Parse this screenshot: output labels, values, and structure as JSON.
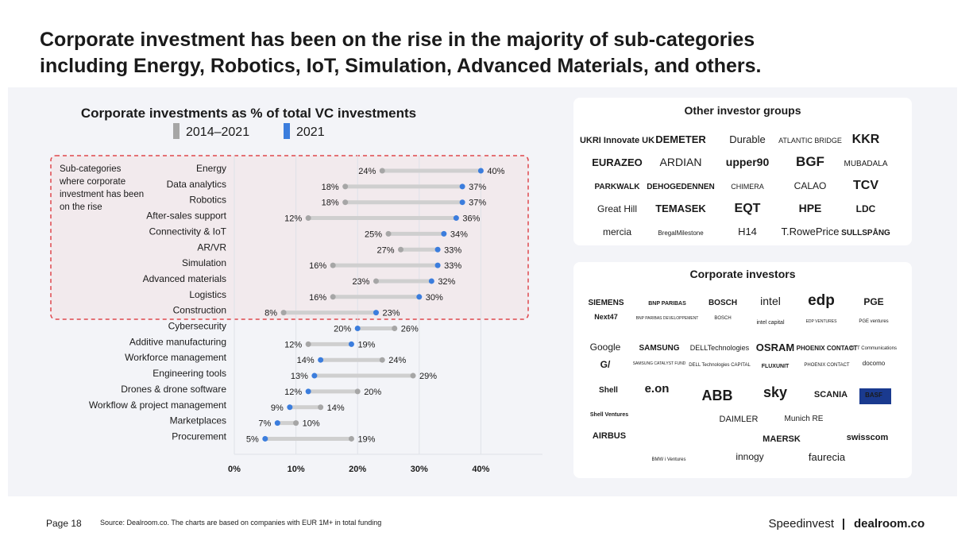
{
  "title_lines": [
    "Corporate investment has been on the rise in the majority of sub-categories",
    "including Energy, Robotics, IoT, Simulation, Advanced Materials, and others."
  ],
  "chart_data": {
    "type": "dumbbell",
    "title": "Corporate investments as % of total VC investments",
    "categories": [
      "Energy",
      "Data analytics",
      "Robotics",
      "After-sales support",
      "Connectivity & IoT",
      "AR/VR",
      "Simulation",
      "Advanced materials",
      "Logistics",
      "Construction",
      "Cybersecurity",
      "Additive manufacturing",
      "Workforce management",
      "Engineering tools",
      "Drones & drone software",
      "Workflow & project management",
      "Marketplaces",
      "Procurement"
    ],
    "series": [
      {
        "name": "2014–2021",
        "color": "#a6a6a6",
        "values": [
          24,
          18,
          18,
          12,
          25,
          27,
          16,
          23,
          16,
          8,
          26,
          12,
          24,
          29,
          20,
          14,
          10,
          19
        ],
        "value_labels": [
          "24%",
          "18%",
          "18%",
          "12%",
          "25%",
          "27%",
          "16%",
          "23%",
          "16%",
          "8%",
          "26%",
          "12%",
          "24%",
          "29%",
          "20%",
          "14%",
          "10%",
          "19%"
        ]
      },
      {
        "name": "2021",
        "color": "#3b7ddd",
        "values": [
          40,
          37,
          37,
          36,
          34,
          33,
          33,
          32,
          30,
          23,
          20,
          19,
          14,
          13,
          12,
          9,
          7,
          5
        ],
        "value_labels": [
          "40%",
          "37%",
          "37%",
          "36%",
          "34%",
          "33%",
          "33%",
          "32%",
          "30%",
          "23%",
          "20%",
          "19%",
          "14%",
          "13%",
          "12%",
          "9%",
          "7%",
          "5%"
        ]
      }
    ],
    "xlim": [
      0,
      50
    ],
    "xticks": [
      {
        "value": 0,
        "label": "0%"
      },
      {
        "value": 10,
        "label": "10%"
      },
      {
        "value": 20,
        "label": "20%"
      },
      {
        "value": 30,
        "label": "30%"
      },
      {
        "value": 40,
        "label": "40%"
      }
    ],
    "grid": true,
    "annotation_lines": [
      "Sub-categories",
      "where corporate",
      "investment has been",
      "on the rise"
    ]
  },
  "other_investors": {
    "title": "Other investor groups",
    "logos": [
      "UKRI Innovate UK",
      "DEMETER",
      "Durable",
      "ATLANTIC BRIDGE",
      "KKR",
      "EURAZEO",
      "ARDIAN",
      "upper90",
      "BGF",
      "MUBADALA",
      "PARKWALK",
      "DEHOGEDENNEN",
      "CHIMERA",
      "CALAO",
      "TCV",
      "Great Hill",
      "TEMASEK",
      "EQT",
      "HPE",
      "LDC",
      "mercia",
      "BregalMilestone",
      "H14",
      "T.RowePrice",
      "SULLSPÅNG"
    ]
  },
  "corporate_investors": {
    "title": "Corporate investors",
    "logos": [
      "SIEMENS",
      "BNP PARIBAS",
      "BOSCH",
      "intel",
      "edp",
      "PGE",
      "Next47",
      "BNP PARIBAS DEVELOPPEMENT",
      "BOSCH",
      "intel capital",
      "EDP VENTURES",
      "PGE ventures",
      "Google",
      "SAMSUNG",
      "DELLTechnologies",
      "OSRAM",
      "PHOENIX CONTACT",
      "NTT Communications",
      "G/",
      "SAMSUNG CATALYST FUND",
      "DELL Technologies CAPITAL",
      "FLUXUNIT",
      "PHOENIX CONTACT",
      "docomo",
      "Shell",
      "e.on",
      "ABB",
      "sky",
      "SCANIA",
      "BASF",
      "Shell Ventures",
      "DAIMLER",
      "Munich RE",
      "AIRBUS",
      "BMW i Ventures",
      "MAERSK",
      "innogy",
      "swisscom",
      "faurecia"
    ]
  },
  "footer": {
    "page": "Page 18",
    "source": "Source: Dealroom.co. The charts are based on companies with EUR 1M+ in total funding",
    "brand1": "Speedinvest",
    "separator": "|",
    "brand2": "dealroom.co"
  }
}
